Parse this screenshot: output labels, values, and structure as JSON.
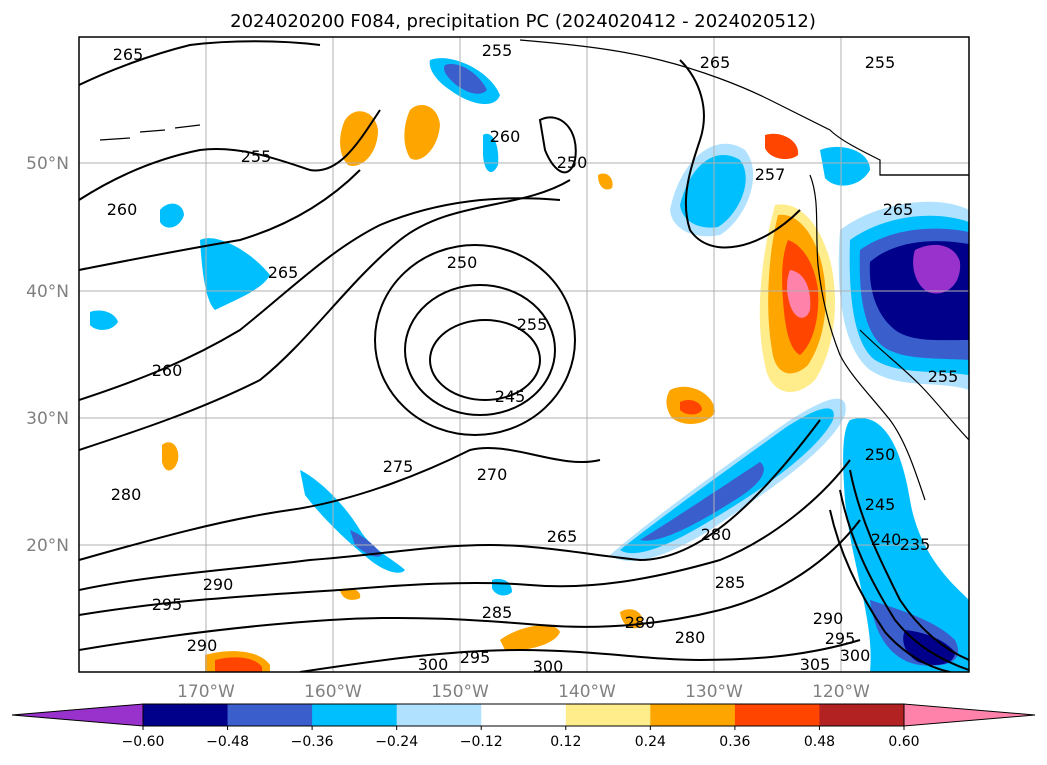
{
  "chart_data": {
    "type": "map-contour",
    "title": "2024020200 F084, precipitation PC (2024020412 - 2024020512)",
    "lon_ticks": [
      "170°W",
      "160°W",
      "150°W",
      "140°W",
      "130°W",
      "120°W"
    ],
    "lat_ticks": [
      "20°N",
      "30°N",
      "40°N",
      "50°N"
    ],
    "grid": true,
    "colorbar": {
      "orientation": "horizontal",
      "extend": "both",
      "levels": [
        -0.6,
        -0.48,
        -0.36,
        -0.24,
        -0.12,
        0.12,
        0.24,
        0.36,
        0.48,
        0.6
      ],
      "tick_labels": [
        "−0.60",
        "−0.48",
        "−0.36",
        "−0.24",
        "−0.12",
        "0.12",
        "0.24",
        "0.36",
        "0.48",
        "0.60"
      ],
      "colors": [
        "#9932CC",
        "#00008B",
        "#3A5FCD",
        "#00BFFF",
        "#B0E2FF",
        "#FFFFFF",
        "#FFEC8B",
        "#FFA500",
        "#FF4500",
        "#B22222",
        "#FF82AB"
      ]
    },
    "contour_labels": [
      "265",
      "255",
      "265",
      "255",
      "250",
      "260",
      "260",
      "255",
      "265",
      "250",
      "255",
      "245",
      "260",
      "275",
      "270",
      "265",
      "280",
      "280",
      "285",
      "290",
      "295",
      "285",
      "280",
      "280",
      "290",
      "295",
      "300",
      "290",
      "300",
      "295",
      "300",
      "305",
      "240",
      "245",
      "250",
      "235",
      "255",
      "265",
      "257"
    ]
  }
}
